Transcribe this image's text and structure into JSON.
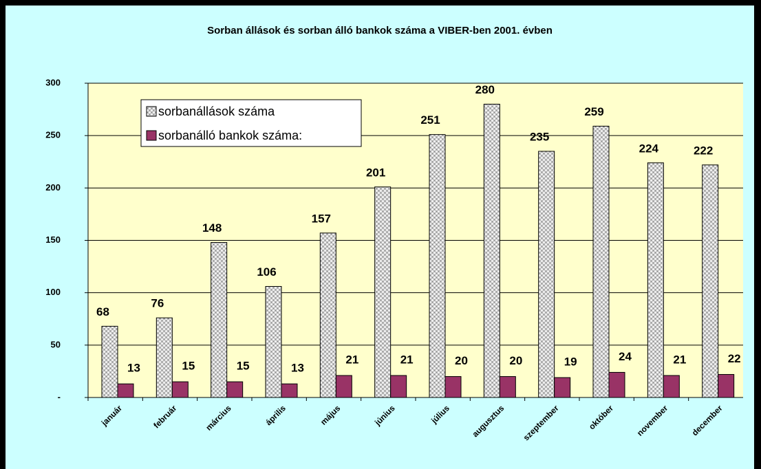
{
  "chart_data": {
    "type": "bar",
    "title": "Sorban állások és sorban álló bankok száma a VIBER-ben 2001. évben",
    "categories": [
      "január",
      "február",
      "március",
      "április",
      "május",
      "június",
      "július",
      "augusztus",
      "szeptember",
      "október",
      "november",
      "december"
    ],
    "series": [
      {
        "name": "sorbanállások száma",
        "color": "#c0c0c0",
        "values": [
          68,
          76,
          148,
          106,
          157,
          201,
          251,
          280,
          235,
          259,
          224,
          222
        ]
      },
      {
        "name": "sorbanálló bankok száma:",
        "color": "#993366",
        "values": [
          13,
          15,
          15,
          13,
          21,
          21,
          20,
          20,
          19,
          24,
          21,
          22
        ]
      }
    ],
    "ylim": [
      0,
      300
    ],
    "yticks": [
      {
        "value": 0,
        "label": "-"
      },
      50,
      100,
      150,
      200,
      250,
      300
    ],
    "grid": true,
    "legend": "top-left"
  }
}
